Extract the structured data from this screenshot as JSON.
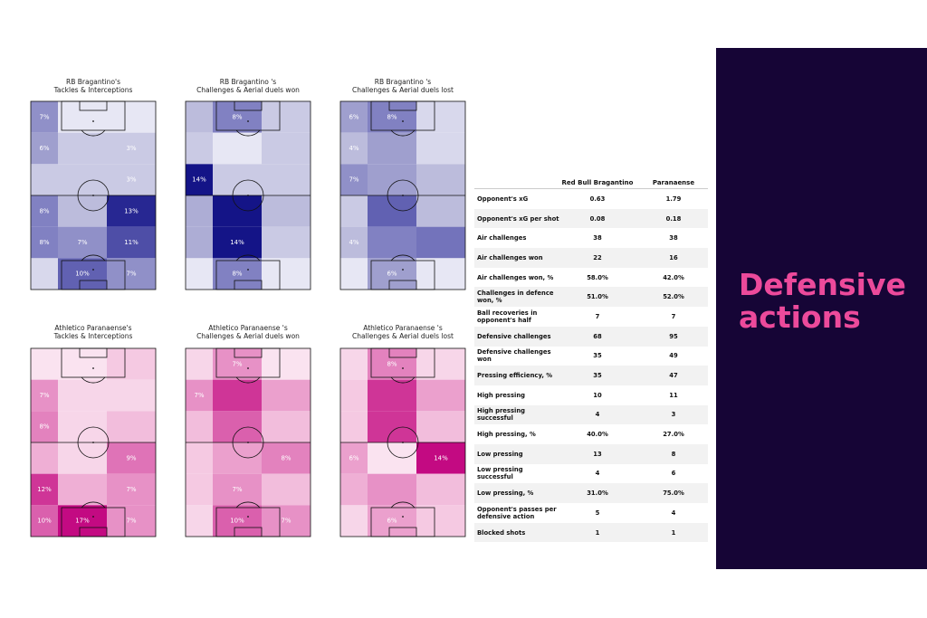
{
  "panel": {
    "title_line1": "Defensive",
    "title_line2": "actions",
    "background": "#160536",
    "accent": "#ec4a9b"
  },
  "chart_data": [
    {
      "type": "heatmap",
      "title": "RB Bragantino's\nTackles & Interceptions",
      "colormap": "Purples",
      "labels": [
        [
          "7%",
          "",
          ""
        ],
        [
          "6%",
          "",
          "3%"
        ],
        [
          "",
          "",
          "3%"
        ],
        [
          "8%",
          "",
          "13%"
        ],
        [
          "8%",
          "7%",
          "11%"
        ],
        [
          "",
          "10%",
          "7%"
        ]
      ],
      "values": [
        [
          7,
          1,
          1
        ],
        [
          6,
          3,
          3
        ],
        [
          3,
          3,
          3
        ],
        [
          8,
          4,
          13
        ],
        [
          8,
          7,
          11
        ],
        [
          2,
          10,
          7
        ]
      ]
    },
    {
      "type": "heatmap",
      "title": "RB Bragantino 's\nChallenges & Aerial duels won",
      "colormap": "Purples",
      "labels": [
        [
          "",
          "8%",
          ""
        ],
        [
          "",
          "",
          ""
        ],
        [
          "14%",
          "",
          ""
        ],
        [
          "",
          "",
          ""
        ],
        [
          "",
          "14%",
          ""
        ],
        [
          "",
          "8%",
          ""
        ]
      ],
      "values": [
        [
          4,
          8,
          3
        ],
        [
          3,
          1,
          3
        ],
        [
          14,
          3,
          3
        ],
        [
          5,
          14,
          4
        ],
        [
          5,
          14,
          3
        ],
        [
          1,
          8,
          1
        ]
      ]
    },
    {
      "type": "heatmap",
      "title": "RB Bragantino 's\nChallenges & Aerial duels lost",
      "colormap": "Purples",
      "labels": [
        [
          "6%",
          "8%",
          ""
        ],
        [
          "4%",
          "",
          ""
        ],
        [
          "7%",
          "",
          ""
        ],
        [
          "",
          "",
          ""
        ],
        [
          "4%",
          "",
          ""
        ],
        [
          "",
          "6%",
          ""
        ]
      ],
      "values": [
        [
          6,
          8,
          2
        ],
        [
          4,
          6,
          2
        ],
        [
          7,
          6,
          4
        ],
        [
          3,
          10,
          4
        ],
        [
          4,
          8,
          9
        ],
        [
          1,
          6,
          1
        ]
      ]
    },
    {
      "type": "heatmap",
      "title": "Athletico Paranaense's\nTackles & Interceptions",
      "colormap": "RdPu",
      "labels": [
        [
          "",
          "",
          ""
        ],
        [
          "7%",
          "",
          ""
        ],
        [
          "8%",
          "",
          ""
        ],
        [
          "",
          "",
          "9%"
        ],
        [
          "12%",
          "",
          "7%"
        ],
        [
          "10%",
          "17%",
          "7%"
        ]
      ],
      "values": [
        [
          1,
          1,
          3
        ],
        [
          7,
          2,
          2
        ],
        [
          8,
          2,
          4
        ],
        [
          5,
          2,
          9
        ],
        [
          12,
          5,
          7
        ],
        [
          10,
          17,
          7
        ]
      ]
    },
    {
      "type": "heatmap",
      "title": "Athletico Paranaense 's\nChallenges & Aerial duels won",
      "colormap": "RdPu",
      "labels": [
        [
          "",
          "7%",
          ""
        ],
        [
          "7%",
          "",
          ""
        ],
        [
          "",
          "",
          ""
        ],
        [
          "",
          "",
          "8%"
        ],
        [
          "",
          "7%",
          ""
        ],
        [
          "",
          "10%",
          "7%"
        ]
      ],
      "values": [
        [
          2,
          7,
          1
        ],
        [
          7,
          12,
          6
        ],
        [
          4,
          10,
          4
        ],
        [
          3,
          6,
          8
        ],
        [
          3,
          7,
          4
        ],
        [
          2,
          10,
          7
        ]
      ]
    },
    {
      "type": "heatmap",
      "title": "Athletico Paranaense 's\nChallenges & Aerial duels lost",
      "colormap": "RdPu",
      "labels": [
        [
          "",
          "8%",
          ""
        ],
        [
          "",
          "",
          ""
        ],
        [
          "",
          "",
          ""
        ],
        [
          "6%",
          "",
          "14%"
        ],
        [
          "",
          "",
          ""
        ],
        [
          "",
          "6%",
          ""
        ]
      ],
      "values": [
        [
          2,
          8,
          2
        ],
        [
          3,
          12,
          6
        ],
        [
          3,
          12,
          4
        ],
        [
          6,
          1,
          14
        ],
        [
          5,
          7,
          4
        ],
        [
          2,
          6,
          3
        ]
      ]
    },
    {
      "type": "table",
      "columns": [
        "",
        "Red Bull Bragantino",
        "Paranaense"
      ],
      "rows": [
        [
          "Opponent's xG",
          "0.63",
          "1.79"
        ],
        [
          "Opponent's xG per shot",
          "0.08",
          "0.18"
        ],
        [
          "Air challenges",
          "38",
          "38"
        ],
        [
          "Air challenges won",
          "22",
          "16"
        ],
        [
          "Air challenges won, %",
          "58.0%",
          "42.0%"
        ],
        [
          "Challenges in defence won, %",
          "51.0%",
          "52.0%"
        ],
        [
          "Ball recoveries in opponent's half",
          "7",
          "7"
        ],
        [
          "Defensive challenges",
          "68",
          "95"
        ],
        [
          "Defensive challenges won",
          "35",
          "49"
        ],
        [
          "Pressing efficiency, %",
          "35",
          "47"
        ],
        [
          "High pressing",
          "10",
          "11"
        ],
        [
          "High pressing successful",
          "4",
          "3"
        ],
        [
          "High pressing, %",
          "40.0%",
          "27.0%"
        ],
        [
          "Low pressing",
          "13",
          "8"
        ],
        [
          "Low pressing successful",
          "4",
          "6"
        ],
        [
          "Low pressing, %",
          "31.0%",
          "75.0%"
        ],
        [
          "Opponent's passes per defensive action",
          "5",
          "4"
        ],
        [
          "Blocked shots",
          "1",
          "1"
        ]
      ]
    }
  ]
}
